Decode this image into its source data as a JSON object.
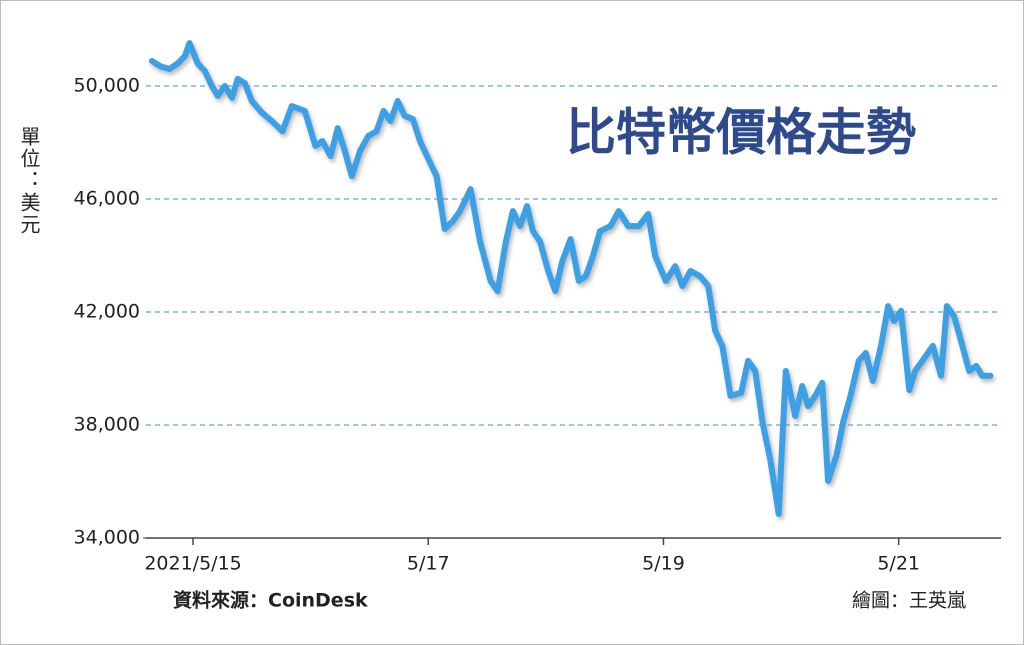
{
  "chart_data": {
    "type": "line",
    "title": "比特幣價格走勢",
    "y_label": "單位：美元",
    "source": "資料來源：CoinDesk",
    "credit": "繪圖：王英嵐",
    "color": "#3aa0e6",
    "grid": true,
    "xlim": [
      -0.4,
      6.87
    ],
    "ylim": [
      34000,
      52000
    ],
    "xticks": [
      {
        "value": 0,
        "label": "2021/5/15"
      },
      {
        "value": 2,
        "label": "5/17"
      },
      {
        "value": 4,
        "label": "5/19"
      },
      {
        "value": 6,
        "label": "5/21"
      }
    ],
    "yticks": [
      {
        "value": 34000,
        "label": "34,000"
      },
      {
        "value": 38000,
        "label": "38,000"
      },
      {
        "value": 42000,
        "label": "42,000"
      },
      {
        "value": 46000,
        "label": "46,000"
      },
      {
        "value": 50000,
        "label": "50,000"
      }
    ],
    "x": [
      -0.35,
      -0.28,
      -0.2,
      -0.13,
      -0.07,
      -0.03,
      0.04,
      0.1,
      0.16,
      0.21,
      0.27,
      0.33,
      0.38,
      0.44,
      0.5,
      0.59,
      0.67,
      0.76,
      0.84,
      0.95,
      1.04,
      1.1,
      1.17,
      1.23,
      1.29,
      1.35,
      1.42,
      1.49,
      1.56,
      1.62,
      1.68,
      1.74,
      1.8,
      1.87,
      1.93,
      2.0,
      2.07,
      2.14,
      2.21,
      2.27,
      2.36,
      2.44,
      2.53,
      2.59,
      2.66,
      2.72,
      2.78,
      2.84,
      2.89,
      2.95,
      3.02,
      3.08,
      3.14,
      3.21,
      3.28,
      3.34,
      3.4,
      3.46,
      3.55,
      3.62,
      3.7,
      3.79,
      3.87,
      3.93,
      4.02,
      4.1,
      4.16,
      4.23,
      4.31,
      4.38,
      4.44,
      4.5,
      4.57,
      4.66,
      4.72,
      4.78,
      4.84,
      4.91,
      4.98,
      5.04,
      5.12,
      5.18,
      5.23,
      5.29,
      5.35,
      5.4,
      5.47,
      5.53,
      5.59,
      5.66,
      5.72,
      5.78,
      5.85,
      5.91,
      5.96,
      6.02,
      6.09,
      6.14,
      6.23,
      6.29,
      6.36,
      6.41,
      6.47,
      6.53,
      6.6,
      6.66,
      6.71,
      6.78
    ],
    "values": [
      50885,
      50700,
      50600,
      50800,
      51060,
      51520,
      50800,
      50530,
      50000,
      49650,
      50000,
      49580,
      50250,
      50100,
      49470,
      49040,
      48760,
      48400,
      49290,
      49120,
      47880,
      48050,
      47520,
      48510,
      47700,
      46810,
      47700,
      48230,
      48400,
      49120,
      48760,
      49470,
      48940,
      48830,
      48050,
      47420,
      46810,
      44940,
      45220,
      45570,
      46350,
      44500,
      43100,
      42740,
      44500,
      45570,
      45040,
      45750,
      44860,
      44500,
      43450,
      42740,
      43800,
      44580,
      43100,
      43270,
      43980,
      44860,
      45040,
      45570,
      45040,
      45040,
      45470,
      43980,
      43100,
      43620,
      42920,
      43450,
      43270,
      42920,
      41330,
      40800,
      39030,
      39140,
      40270,
      39910,
      38140,
      36730,
      34850,
      39910,
      38320,
      39380,
      38670,
      39030,
      39490,
      36020,
      36910,
      38140,
      39030,
      40270,
      40550,
      39560,
      40800,
      42210,
      41680,
      42040,
      39240,
      39910,
      40440,
      40800,
      39740,
      42210,
      41860,
      40980,
      39910,
      40090,
      39740,
      39740
    ]
  }
}
